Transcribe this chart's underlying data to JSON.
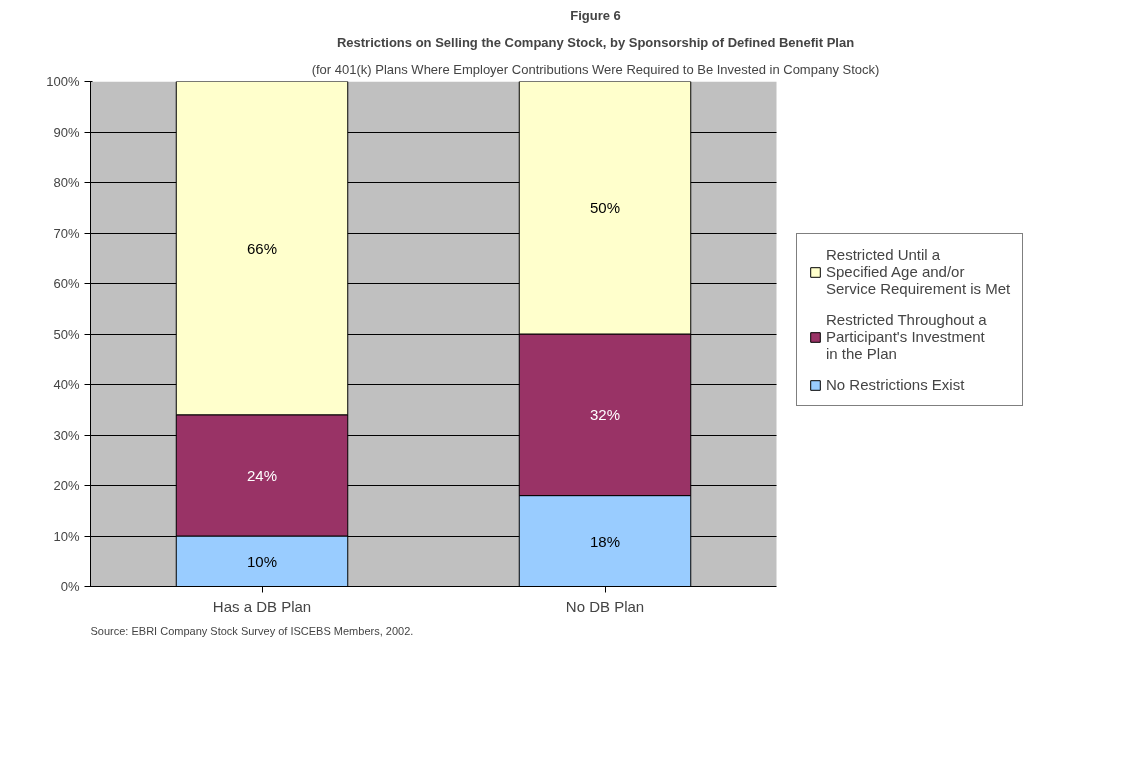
{
  "chart_data": {
    "type": "bar",
    "stacked": true,
    "title": "Figure 6",
    "subtitle": "Restrictions on Selling the Company Stock, by Sponsorship of Defined Benefit Plan",
    "annotations": [
      "(for 401(k) Plans Where Employer Contributions Were Required to Be Invested in Company Stock)",
      "Source: EBRI Company Stock Survey of ISCEBS Members, 2002."
    ],
    "categories": [
      "Has a DB Plan",
      "No DB Plan"
    ],
    "series": [
      {
        "name": "No Restrictions Exist",
        "color": "#99ccff",
        "values": [
          10,
          18
        ],
        "value_labels": [
          "10%",
          "18%"
        ]
      },
      {
        "name": "Restricted Throughout a Participant's Investment in the Plan",
        "color": "#993366",
        "values": [
          24,
          32
        ],
        "value_labels": [
          "24%",
          "32%"
        ]
      },
      {
        "name": "Restricted Until a Specified Age and/or Service Requirement is Met",
        "color": "#ffffcc",
        "values": [
          66,
          50
        ],
        "value_labels": [
          "66%",
          "50%"
        ]
      }
    ],
    "ylim": [
      0,
      100
    ],
    "yticks": [
      {
        "value": 0,
        "label": "0%"
      },
      {
        "value": 10,
        "label": "10%"
      },
      {
        "value": 20,
        "label": "20%"
      },
      {
        "value": 30,
        "label": "30%"
      },
      {
        "value": 40,
        "label": "40%"
      },
      {
        "value": 50,
        "label": "50%"
      },
      {
        "value": 60,
        "label": "60%"
      },
      {
        "value": 70,
        "label": "70%"
      },
      {
        "value": 80,
        "label": "80%"
      },
      {
        "value": 90,
        "label": "90%"
      },
      {
        "value": 100,
        "label": "100%"
      }
    ],
    "grid": "y",
    "legend": "right",
    "data_labels": true
  }
}
